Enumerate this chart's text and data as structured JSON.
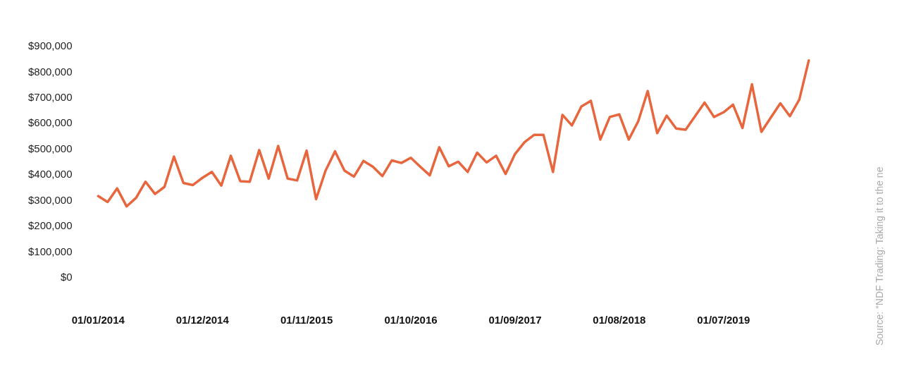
{
  "chart_data": {
    "type": "line",
    "categories": [
      "01/01/2014",
      null,
      null,
      null,
      null,
      null,
      null,
      null,
      null,
      null,
      null,
      "01/12/2014",
      null,
      null,
      null,
      null,
      null,
      null,
      null,
      null,
      null,
      null,
      "01/11/2015",
      null,
      null,
      null,
      null,
      null,
      null,
      null,
      null,
      null,
      null,
      "01/10/2016",
      null,
      null,
      null,
      null,
      null,
      null,
      null,
      null,
      null,
      null,
      "01/09/2017",
      null,
      null,
      null,
      null,
      null,
      null,
      null,
      null,
      null,
      null,
      "01/08/2018",
      null,
      null,
      null,
      null,
      null,
      null,
      null,
      null,
      null,
      null,
      "01/07/2019",
      null,
      null,
      null,
      null,
      null,
      null,
      null,
      null,
      null
    ],
    "series": [
      {
        "color": "#e8663d",
        "values": [
          318000,
          295000,
          348000,
          278000,
          311000,
          374000,
          326000,
          354000,
          472000,
          369000,
          361000,
          389000,
          412000,
          359000,
          475000,
          376000,
          374000,
          497000,
          386000,
          513000,
          386000,
          379000,
          495000,
          306000,
          417000,
          492000,
          417000,
          394000,
          455000,
          432000,
          396000,
          457000,
          447000,
          467000,
          432000,
          399000,
          508000,
          434000,
          452000,
          412000,
          487000,
          449000,
          475000,
          404000,
          482000,
          528000,
          556000,
          556000,
          412000,
          634000,
          593000,
          667000,
          689000,
          538000,
          626000,
          636000,
          538000,
          609000,
          727000,
          563000,
          631000,
          581000,
          576000,
          629000,
          682000,
          626000,
          644000,
          674000,
          583000,
          753000,
          568000,
          624000,
          679000,
          629000,
          694000,
          846000
        ]
      }
    ],
    "ylim": [
      0,
      900000
    ],
    "yticks": [
      {
        "value": 0,
        "label": "$0"
      },
      {
        "value": 100000,
        "label": "$100,000"
      },
      {
        "value": 200000,
        "label": "$200,000"
      },
      {
        "value": 300000,
        "label": "$300,000"
      },
      {
        "value": 400000,
        "label": "$400,000"
      },
      {
        "value": 500000,
        "label": "$500,000"
      },
      {
        "value": 600000,
        "label": "$600,000"
      },
      {
        "value": 700000,
        "label": "$700,000"
      },
      {
        "value": 800000,
        "label": "$800,000"
      },
      {
        "value": 900000,
        "label": "$900,000"
      }
    ],
    "grid": false,
    "legend": false,
    "marker": "none",
    "line_style": "solid",
    "annotations": [
      "Source: “NDF Trading: Taking it to the ne"
    ]
  }
}
